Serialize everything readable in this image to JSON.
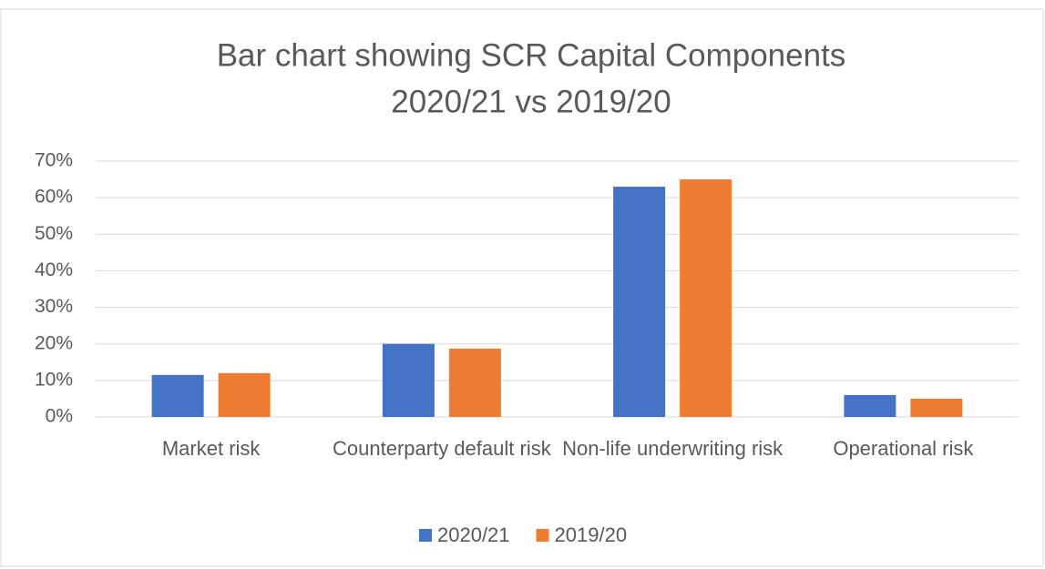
{
  "chart_data": {
    "type": "bar",
    "title": [
      "Bar chart showing SCR Capital Components",
      "2020/21 vs 2019/20"
    ],
    "categories": [
      "Market risk",
      "Counterparty default risk",
      "Non-life underwriting risk",
      "Operational risk"
    ],
    "series": [
      {
        "name": "2020/21",
        "color": "#4472c4",
        "values": [
          11.5,
          20,
          63,
          6
        ]
      },
      {
        "name": "2019/20",
        "color": "#ed7d31",
        "values": [
          12,
          18.7,
          65,
          5
        ]
      }
    ],
    "ylim": [
      0,
      70
    ],
    "yticks": [
      {
        "value": 0,
        "label": "0%"
      },
      {
        "value": 10,
        "label": "10%"
      },
      {
        "value": 20,
        "label": "20%"
      },
      {
        "value": 30,
        "label": "30%"
      },
      {
        "value": 40,
        "label": "40%"
      },
      {
        "value": 50,
        "label": "50%"
      },
      {
        "value": 60,
        "label": "60%"
      },
      {
        "value": 70,
        "label": "70%"
      }
    ],
    "grid": true,
    "legend": "bottom"
  }
}
